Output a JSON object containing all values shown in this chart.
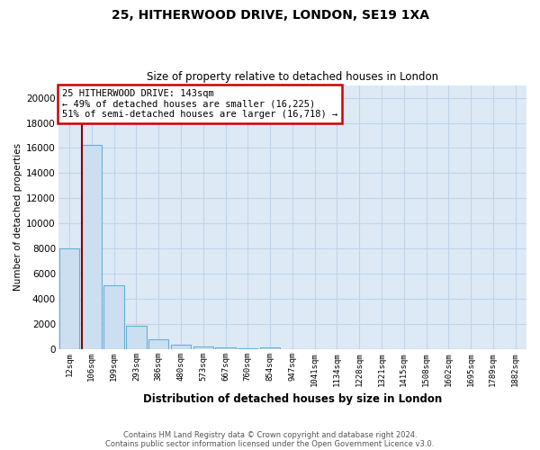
{
  "title1": "25, HITHERWOOD DRIVE, LONDON, SE19 1XA",
  "title2": "Size of property relative to detached houses in London",
  "xlabel": "Distribution of detached houses by size in London",
  "ylabel": "Number of detached properties",
  "categories": [
    "12sqm",
    "106sqm",
    "199sqm",
    "293sqm",
    "386sqm",
    "480sqm",
    "573sqm",
    "667sqm",
    "760sqm",
    "854sqm",
    "947sqm",
    "1041sqm",
    "1134sqm",
    "1228sqm",
    "1321sqm",
    "1415sqm",
    "1508sqm",
    "1602sqm",
    "1695sqm",
    "1789sqm",
    "1882sqm"
  ],
  "values": [
    8050,
    16225,
    5100,
    1870,
    800,
    390,
    200,
    140,
    110,
    160,
    0,
    0,
    0,
    0,
    0,
    0,
    0,
    0,
    0,
    0,
    0
  ],
  "bar_color": "#ccdff0",
  "bar_edge_color": "#6baed6",
  "red_line_color": "#8b0000",
  "annotation_text": "25 HITHERWOOD DRIVE: 143sqm\n← 49% of detached houses are smaller (16,225)\n51% of semi-detached houses are larger (16,718) →",
  "annotation_box_color": "#ffffff",
  "annotation_box_edge": "#cc0000",
  "footer1": "Contains HM Land Registry data © Crown copyright and database right 2024.",
  "footer2": "Contains public sector information licensed under the Open Government Licence v3.0.",
  "ylim": [
    0,
    21000
  ],
  "yticks": [
    0,
    2000,
    4000,
    6000,
    8000,
    10000,
    12000,
    14000,
    16000,
    18000,
    20000
  ],
  "background_color": "#ddeaf6",
  "grid_color": "#c0d4e8",
  "fig_bg": "#ffffff"
}
